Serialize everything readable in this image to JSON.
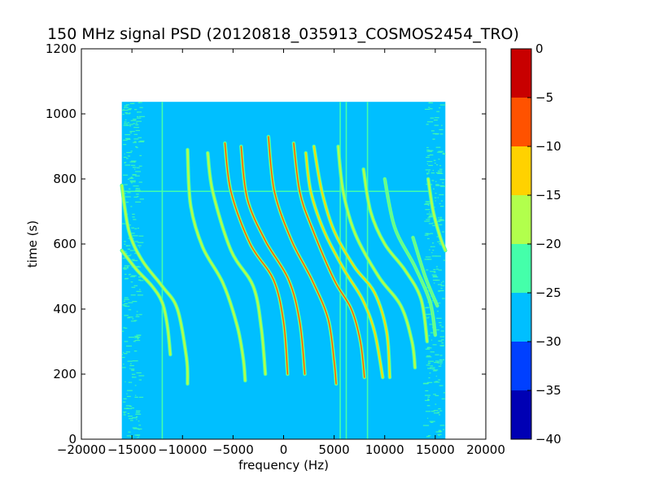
{
  "chart_data": {
    "type": "heatmap",
    "title": "150 MHz signal PSD (20120818_035913_COSMOS2454_TRO)",
    "xlabel": "frequency (Hz)",
    "ylabel": "time (s)",
    "xlim": [
      -20000,
      20000
    ],
    "ylim": [
      0,
      1200
    ],
    "x_ticks": [
      -20000,
      -15000,
      -10000,
      -5000,
      0,
      5000,
      10000,
      15000,
      20000
    ],
    "x_tick_labels": [
      "−20000",
      "−15000",
      "−10000",
      "−5000",
      "0",
      "5000",
      "10000",
      "15000",
      "20000"
    ],
    "y_ticks": [
      0,
      200,
      400,
      600,
      800,
      1000,
      1200
    ],
    "y_tick_labels": [
      "0",
      "200",
      "400",
      "600",
      "800",
      "1000",
      "1200"
    ],
    "grid": false,
    "data_extent": {
      "x": [
        -16000,
        16000
      ],
      "y": [
        0,
        1037
      ]
    },
    "colorbar": {
      "range": [
        -40,
        0
      ],
      "levels": [
        -40,
        -35,
        -30,
        -25,
        -20,
        -15,
        -10,
        -5,
        0
      ],
      "tick_labels": [
        "−40",
        "−35",
        "−30",
        "−25",
        "−20",
        "−15",
        "−10",
        "−5",
        "0"
      ],
      "colors": [
        "#0000b4",
        "#0040ff",
        "#00bfff",
        "#44ffaa",
        "#b2ff4c",
        "#ffd200",
        "#ff5200",
        "#c80000"
      ]
    },
    "background_level": -27.5,
    "horizontal_line": {
      "time": 762,
      "x_range": [
        -16000,
        14500
      ],
      "level": -22.5
    },
    "vertical_lines": [
      {
        "frequency": -12000,
        "level": -22.5
      },
      {
        "frequency": 5600,
        "level": -22.5
      },
      {
        "frequency": 6200,
        "level": -22.5
      },
      {
        "frequency": 8300,
        "level": -22.5
      }
    ],
    "traces": [
      {
        "points": [
          [
            -16000,
            580
          ],
          [
            -14500,
            520
          ],
          [
            -13000,
            470
          ],
          [
            -12000,
            420
          ],
          [
            -11500,
            350
          ],
          [
            -11200,
            260
          ]
        ],
        "peak_level": -17.5
      },
      {
        "points": [
          [
            -16000,
            780
          ],
          [
            -15300,
            640
          ],
          [
            -14000,
            550
          ],
          [
            -12000,
            470
          ],
          [
            -10500,
            400
          ],
          [
            -9600,
            250
          ],
          [
            -9500,
            170
          ]
        ],
        "peak_level": -17.5
      },
      {
        "points": [
          [
            -9500,
            890
          ],
          [
            -9200,
            720
          ],
          [
            -8000,
            590
          ],
          [
            -6000,
            480
          ],
          [
            -4600,
            350
          ],
          [
            -4000,
            250
          ],
          [
            -3800,
            180
          ]
        ],
        "peak_level": -17.5
      },
      {
        "points": [
          [
            -7500,
            880
          ],
          [
            -7000,
            760
          ],
          [
            -5200,
            580
          ],
          [
            -3000,
            470
          ],
          [
            -2200,
            340
          ],
          [
            -1800,
            200
          ]
        ],
        "peak_level": -17.5
      },
      {
        "points": [
          [
            -5800,
            910
          ],
          [
            -5200,
            760
          ],
          [
            -3300,
            600
          ],
          [
            -1000,
            490
          ],
          [
            0,
            360
          ],
          [
            400,
            200
          ]
        ],
        "peak_level": -7.5
      },
      {
        "points": [
          [
            -4200,
            900
          ],
          [
            -3600,
            740
          ],
          [
            -1800,
            610
          ],
          [
            500,
            490
          ],
          [
            1600,
            360
          ],
          [
            2100,
            200
          ]
        ],
        "peak_level": -7.5
      },
      {
        "points": [
          [
            -1500,
            930
          ],
          [
            -900,
            760
          ],
          [
            800,
            610
          ],
          [
            2800,
            490
          ],
          [
            4400,
            370
          ],
          [
            5000,
            240
          ],
          [
            5200,
            170
          ]
        ],
        "peak_level": -7.5
      },
      {
        "points": [
          [
            1000,
            910
          ],
          [
            1600,
            760
          ],
          [
            2800,
            650
          ],
          [
            5000,
            490
          ],
          [
            6700,
            400
          ],
          [
            7600,
            300
          ],
          [
            8000,
            190
          ]
        ],
        "peak_level": -7.5
      },
      {
        "points": [
          [
            2200,
            880
          ],
          [
            2700,
            760
          ],
          [
            4000,
            640
          ],
          [
            6000,
            520
          ],
          [
            7800,
            430
          ],
          [
            9000,
            330
          ],
          [
            9800,
            190
          ]
        ],
        "peak_level": -12.5
      },
      {
        "points": [
          [
            3000,
            900
          ],
          [
            3800,
            760
          ],
          [
            5000,
            640
          ],
          [
            7000,
            530
          ],
          [
            9000,
            450
          ],
          [
            10200,
            330
          ],
          [
            10500,
            190
          ]
        ],
        "peak_level": -12.5
      },
      {
        "points": [
          [
            5400,
            900
          ],
          [
            5900,
            760
          ],
          [
            7100,
            630
          ],
          [
            9400,
            500
          ],
          [
            11600,
            410
          ],
          [
            12700,
            300
          ],
          [
            13000,
            220
          ]
        ],
        "peak_level": -17.5
      },
      {
        "points": [
          [
            7900,
            830
          ],
          [
            8600,
            700
          ],
          [
            10000,
            600
          ],
          [
            12000,
            520
          ],
          [
            13600,
            430
          ],
          [
            14200,
            300
          ]
        ],
        "peak_level": -17.5
      },
      {
        "points": [
          [
            10000,
            800
          ],
          [
            11000,
            650
          ],
          [
            13000,
            530
          ],
          [
            14500,
            420
          ],
          [
            15000,
            320
          ]
        ],
        "peak_level": -22.5
      },
      {
        "points": [
          [
            12800,
            620
          ],
          [
            14000,
            500
          ],
          [
            15200,
            410
          ]
        ],
        "peak_level": -22.5
      },
      {
        "points": [
          [
            14300,
            800
          ],
          [
            14800,
            700
          ],
          [
            15500,
            620
          ],
          [
            16000,
            580
          ]
        ],
        "peak_level": -17.5
      }
    ]
  }
}
